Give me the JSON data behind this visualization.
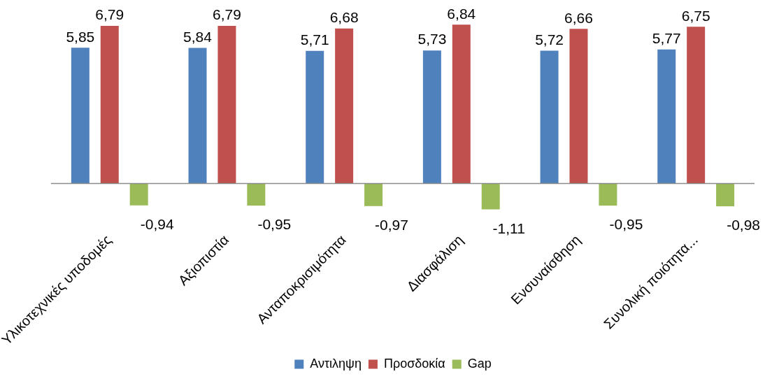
{
  "chart_data": {
    "type": "bar",
    "categories": [
      "Υλικοτεχνικές υποδομές",
      "Αξιοπιστία",
      "Ανταποκρισιμότητα",
      "Διασφάλιση",
      "Ενσυναίσθηση",
      "Συνολική ποιότητα..."
    ],
    "series": [
      {
        "name": "Αντιληψη",
        "color": "#4f81bd",
        "values": [
          5.85,
          5.84,
          5.71,
          5.73,
          5.72,
          5.77
        ],
        "value_labels": [
          "5,85",
          "5,84",
          "5,71",
          "5,73",
          "5,72",
          "5,77"
        ]
      },
      {
        "name": "Προσδοκία",
        "color": "#c0504d",
        "values": [
          6.79,
          6.79,
          6.68,
          6.84,
          6.66,
          6.75
        ],
        "value_labels": [
          "6,79",
          "6,79",
          "6,68",
          "6,84",
          "6,66",
          "6,75"
        ]
      },
      {
        "name": "Gap",
        "color": "#9bbb59",
        "values": [
          -0.94,
          -0.95,
          -0.97,
          -1.11,
          -0.95,
          -0.98
        ],
        "value_labels": [
          "-0,94",
          "-0,95",
          "-0,97",
          "-1,11",
          "-0,95",
          "-0,98"
        ]
      }
    ],
    "legend": "bottom",
    "grid": false
  }
}
